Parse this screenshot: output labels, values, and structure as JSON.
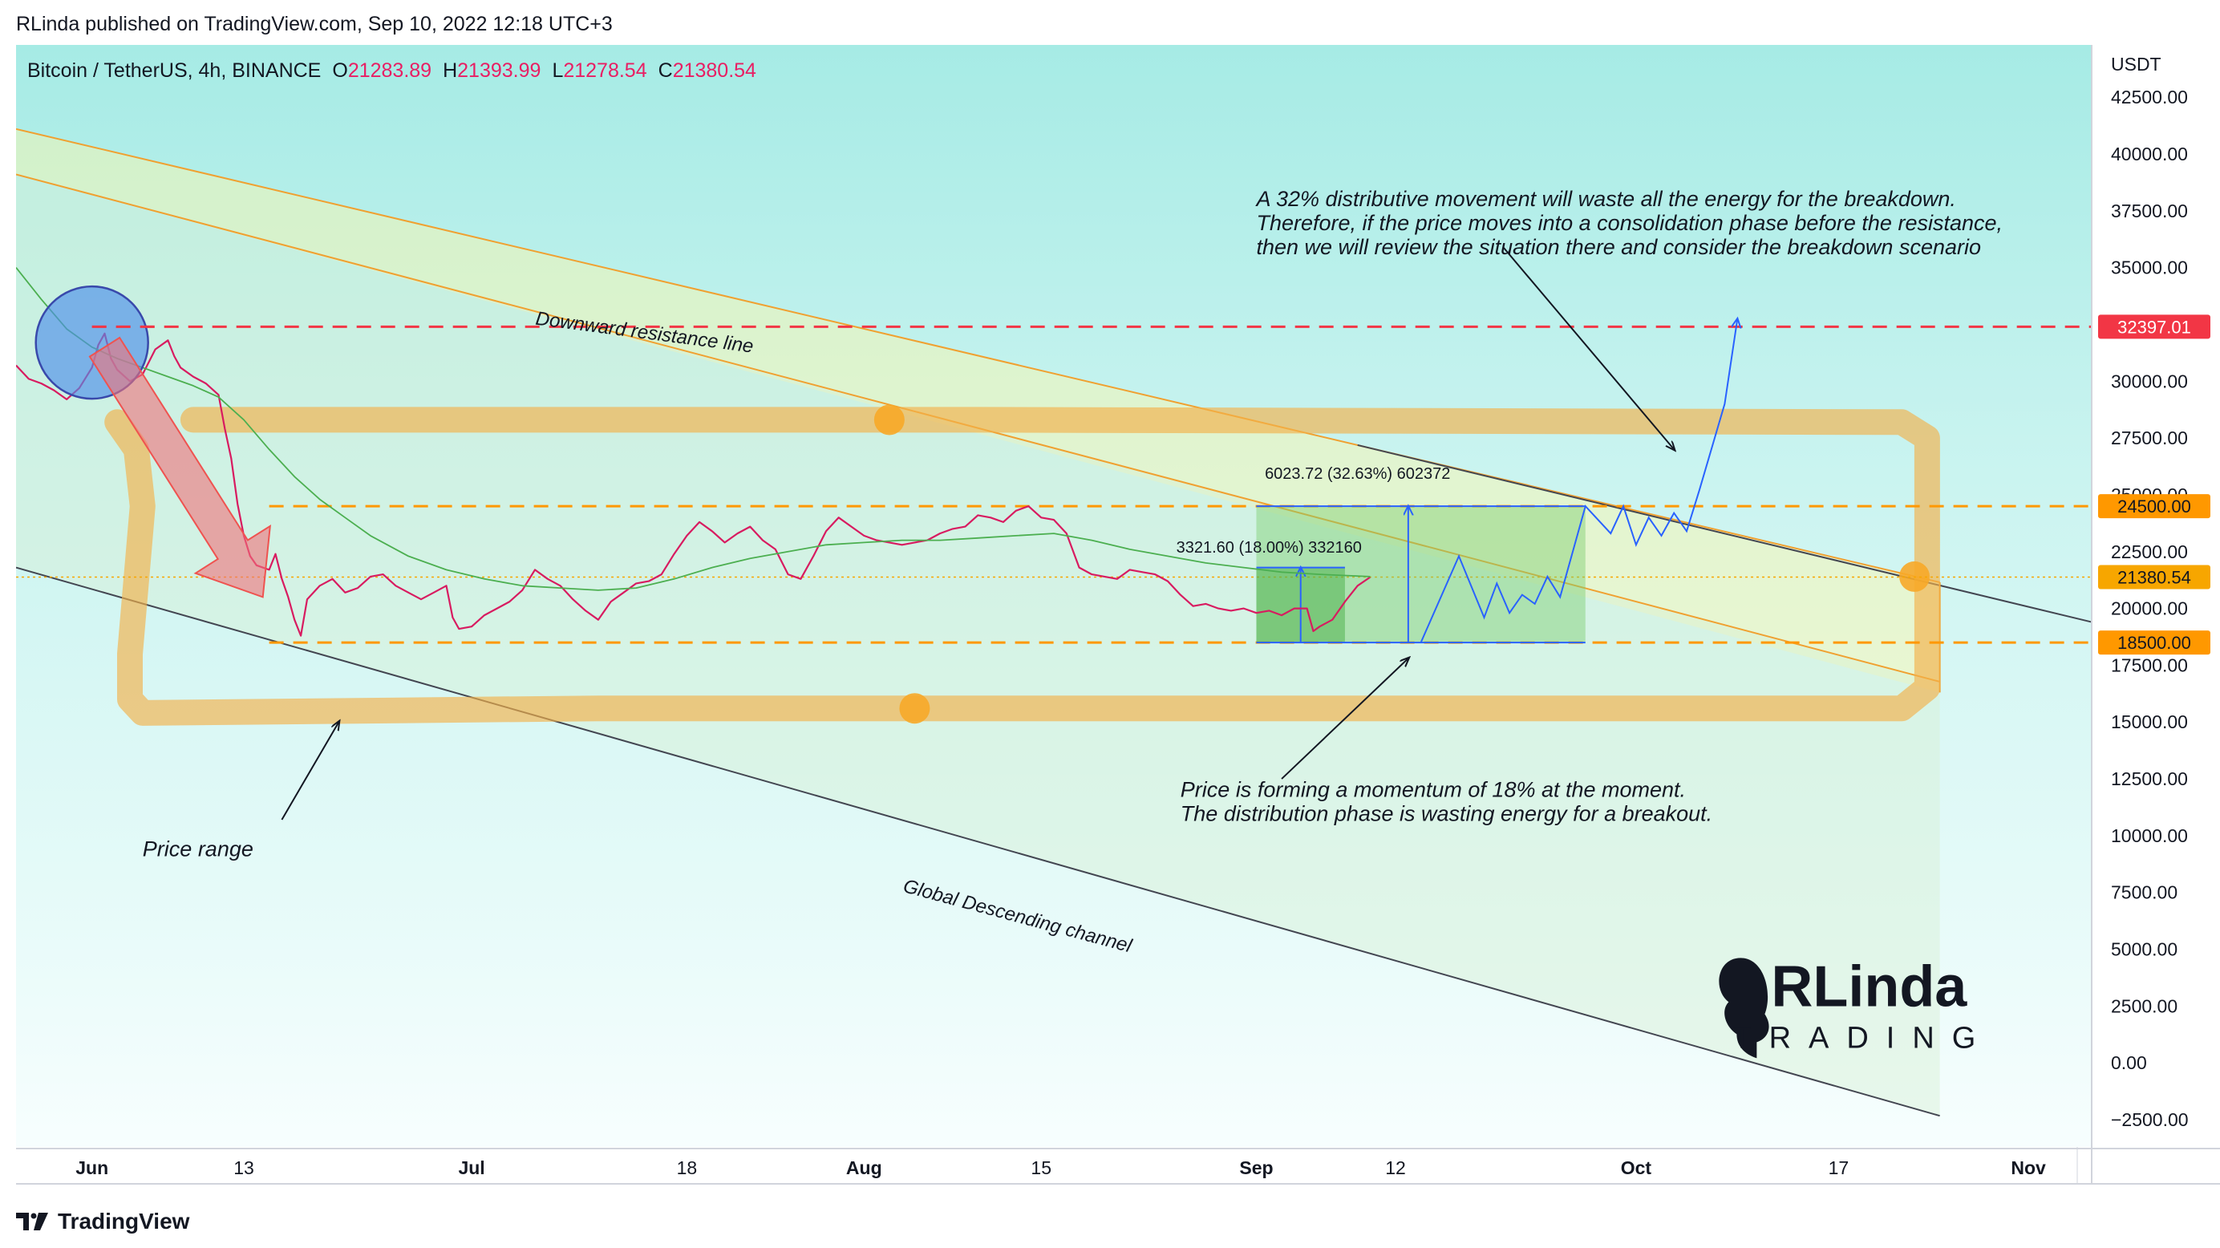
{
  "header": {
    "published_text": "RLinda published on TradingView.com, Sep 10, 2022 12:18 UTC+3"
  },
  "footer": {
    "brand": "TradingView",
    "logo_icon": "tradingview-logo-icon"
  },
  "chart_data": {
    "type": "line",
    "symbol": {
      "title": "Bitcoin / TetherUS, 4h, BINANCE",
      "ohlc": [
        {
          "label": "O",
          "value": "21283.89"
        },
        {
          "label": "H",
          "value": "21393.99"
        },
        {
          "label": "L",
          "value": "21278.54"
        },
        {
          "label": "C",
          "value": "21380.54"
        }
      ]
    },
    "ylabel": "USDT",
    "ylim": [
      -3700,
      44800
    ],
    "y_ticks": [
      "42500.00",
      "40000.00",
      "37500.00",
      "35000.00",
      "32500.00",
      "30000.00",
      "27500.00",
      "25000.00",
      "22500.00",
      "20000.00",
      "17500.00",
      "15000.00",
      "12500.00",
      "10000.00",
      "7500.00",
      "5000.00",
      "2500.00",
      "0.00",
      "−2500.00"
    ],
    "x_range_days": [
      -6,
      158
    ],
    "x_ticks": [
      {
        "label": "Jun",
        "day": 0
      },
      {
        "label": "13",
        "day": 12
      },
      {
        "label": "Jul",
        "day": 30
      },
      {
        "label": "18",
        "day": 47
      },
      {
        "label": "Aug",
        "day": 61
      },
      {
        "label": "15",
        "day": 75
      },
      {
        "label": "Sep",
        "day": 92
      },
      {
        "label": "12",
        "day": 103
      },
      {
        "label": "Oct",
        "day": 122
      },
      {
        "label": "17",
        "day": 138
      },
      {
        "label": "Nov",
        "day": 153
      }
    ],
    "price_levels": [
      {
        "value": 32397.01,
        "label": "32397.01",
        "color": "#f23645",
        "x_start": 0
      },
      {
        "value": 24500.0,
        "label": "24500.00",
        "color": "#ff9800",
        "x_start": 14
      },
      {
        "value": 18500.0,
        "label": "18500.00",
        "color": "#ff9800",
        "x_start": 14
      }
    ],
    "last_price": {
      "value": 21380.54,
      "label": "21380.54",
      "color": "#f7a600"
    },
    "series": [
      {
        "kind": "price",
        "color": "#d81b60",
        "points": [
          [
            -6,
            30700
          ],
          [
            -5,
            30100
          ],
          [
            -4,
            29900
          ],
          [
            -3,
            29600
          ],
          [
            -2,
            29200
          ],
          [
            -1,
            29700
          ],
          [
            0,
            30600
          ],
          [
            0.5,
            31600
          ],
          [
            1,
            32100
          ],
          [
            1.5,
            31000
          ],
          [
            2,
            30500
          ],
          [
            3,
            30000
          ],
          [
            4,
            30300
          ],
          [
            5,
            31400
          ],
          [
            6,
            31800
          ],
          [
            6.5,
            31100
          ],
          [
            7,
            30600
          ],
          [
            8,
            30200
          ],
          [
            9,
            29900
          ],
          [
            10,
            29400
          ],
          [
            10.5,
            27900
          ],
          [
            11,
            26600
          ],
          [
            11.5,
            24600
          ],
          [
            12,
            23200
          ],
          [
            12.5,
            22300
          ],
          [
            13,
            21900
          ],
          [
            14,
            21700
          ],
          [
            14.5,
            22400
          ],
          [
            15,
            21300
          ],
          [
            15.5,
            20500
          ],
          [
            16,
            19500
          ],
          [
            16.5,
            18800
          ],
          [
            17,
            20400
          ],
          [
            18,
            21000
          ],
          [
            19,
            21300
          ],
          [
            20,
            20700
          ],
          [
            21,
            20900
          ],
          [
            22,
            21400
          ],
          [
            23,
            21500
          ],
          [
            24,
            21000
          ],
          [
            25,
            20700
          ],
          [
            26,
            20400
          ],
          [
            27,
            20700
          ],
          [
            28,
            21000
          ],
          [
            28.5,
            19600
          ],
          [
            29,
            19100
          ],
          [
            30,
            19200
          ],
          [
            31,
            19700
          ],
          [
            32,
            20000
          ],
          [
            33,
            20300
          ],
          [
            34,
            20800
          ],
          [
            35,
            21700
          ],
          [
            36,
            21300
          ],
          [
            37,
            21000
          ],
          [
            38,
            20400
          ],
          [
            39,
            19900
          ],
          [
            40,
            19500
          ],
          [
            41,
            20300
          ],
          [
            42,
            20700
          ],
          [
            43,
            21100
          ],
          [
            44,
            21200
          ],
          [
            45,
            21500
          ],
          [
            46,
            22400
          ],
          [
            47,
            23200
          ],
          [
            48,
            23800
          ],
          [
            49,
            23400
          ],
          [
            50,
            22900
          ],
          [
            51,
            23300
          ],
          [
            52,
            23600
          ],
          [
            53,
            23000
          ],
          [
            54,
            22600
          ],
          [
            55,
            21500
          ],
          [
            56,
            21300
          ],
          [
            57,
            22300
          ],
          [
            58,
            23400
          ],
          [
            59,
            24000
          ],
          [
            60,
            23600
          ],
          [
            61,
            23200
          ],
          [
            62,
            23000
          ],
          [
            63,
            22900
          ],
          [
            64,
            22800
          ],
          [
            65,
            22900
          ],
          [
            66,
            23000
          ],
          [
            67,
            23300
          ],
          [
            68,
            23500
          ],
          [
            69,
            23600
          ],
          [
            70,
            24100
          ],
          [
            71,
            24000
          ],
          [
            72,
            23800
          ],
          [
            73,
            24300
          ],
          [
            74,
            24500
          ],
          [
            75,
            24000
          ],
          [
            76,
            23900
          ],
          [
            77,
            23300
          ],
          [
            78,
            21800
          ],
          [
            79,
            21500
          ],
          [
            80,
            21400
          ],
          [
            81,
            21300
          ],
          [
            82,
            21700
          ],
          [
            83,
            21600
          ],
          [
            84,
            21500
          ],
          [
            85,
            21200
          ],
          [
            86,
            20600
          ],
          [
            87,
            20100
          ],
          [
            88,
            20200
          ],
          [
            89,
            20000
          ],
          [
            90,
            19900
          ],
          [
            91,
            20000
          ],
          [
            92,
            19800
          ],
          [
            93,
            19900
          ],
          [
            94,
            19700
          ],
          [
            95,
            20000
          ],
          [
            96,
            20000
          ],
          [
            96.5,
            19000
          ],
          [
            97,
            19200
          ],
          [
            98,
            19500
          ],
          [
            99,
            20300
          ],
          [
            100,
            21000
          ],
          [
            101,
            21380
          ]
        ]
      },
      {
        "kind": "sma",
        "color": "#4caf50",
        "points": [
          [
            -6,
            35000
          ],
          [
            -4,
            33600
          ],
          [
            -2,
            32300
          ],
          [
            0,
            31500
          ],
          [
            2,
            31000
          ],
          [
            4,
            30600
          ],
          [
            6,
            30200
          ],
          [
            8,
            29800
          ],
          [
            10,
            29300
          ],
          [
            12,
            28300
          ],
          [
            14,
            27000
          ],
          [
            16,
            25800
          ],
          [
            18,
            24800
          ],
          [
            20,
            24000
          ],
          [
            22,
            23200
          ],
          [
            25,
            22300
          ],
          [
            28,
            21700
          ],
          [
            31,
            21300
          ],
          [
            34,
            21000
          ],
          [
            37,
            20900
          ],
          [
            40,
            20800
          ],
          [
            43,
            20900
          ],
          [
            46,
            21300
          ],
          [
            49,
            21800
          ],
          [
            52,
            22200
          ],
          [
            55,
            22500
          ],
          [
            58,
            22800
          ],
          [
            61,
            22900
          ],
          [
            64,
            23000
          ],
          [
            67,
            23000
          ],
          [
            70,
            23100
          ],
          [
            73,
            23200
          ],
          [
            76,
            23300
          ],
          [
            79,
            23000
          ],
          [
            82,
            22600
          ],
          [
            85,
            22300
          ],
          [
            88,
            22000
          ],
          [
            91,
            21800
          ],
          [
            94,
            21600
          ],
          [
            97,
            21500
          ],
          [
            101,
            21400
          ]
        ]
      }
    ],
    "annotations": [
      {
        "text": "Downward resistance line",
        "style": "italic"
      },
      {
        "text": "Global Descending channel",
        "style": "italic"
      },
      {
        "text": "Price range",
        "style": "italic"
      },
      {
        "lines": [
          "A 32% distributive movement will waste all the energy for the breakdown.",
          "Therefore, if the price moves into a consolidation phase before the resistance,",
          "then we will review the situation there and consider the breakdown scenario"
        ],
        "style": "italic"
      },
      {
        "lines": [
          "Price is forming a momentum of 18% at the moment.",
          "The distribution phase is wasting energy for a breakout."
        ],
        "style": "italic"
      }
    ],
    "measurements": [
      {
        "label": "3321.60 (18.00%) 332160",
        "from": 18500,
        "to": 21821.6
      },
      {
        "label": "6023.72 (32.63%) 602372",
        "from": 18500,
        "to": 24523.72
      }
    ],
    "projection": {
      "color": "#2962ff",
      "points": [
        [
          105,
          18500
        ],
        [
          108,
          22300
        ],
        [
          110,
          19600
        ],
        [
          111,
          21100
        ],
        [
          112,
          19800
        ],
        [
          113,
          20600
        ],
        [
          114,
          20200
        ],
        [
          115,
          21400
        ],
        [
          116,
          20500
        ],
        [
          118,
          24500
        ],
        [
          120,
          23300
        ],
        [
          121,
          24500
        ],
        [
          122,
          22800
        ],
        [
          123,
          24000
        ],
        [
          124,
          23200
        ],
        [
          125,
          24200
        ],
        [
          126,
          23400
        ],
        [
          127,
          25200
        ],
        [
          129,
          29000
        ],
        [
          130,
          32700
        ]
      ]
    },
    "watermark": {
      "line1": "RLinda",
      "line2": "TRADING",
      "icon": "rlinda-head-logo-icon"
    }
  }
}
